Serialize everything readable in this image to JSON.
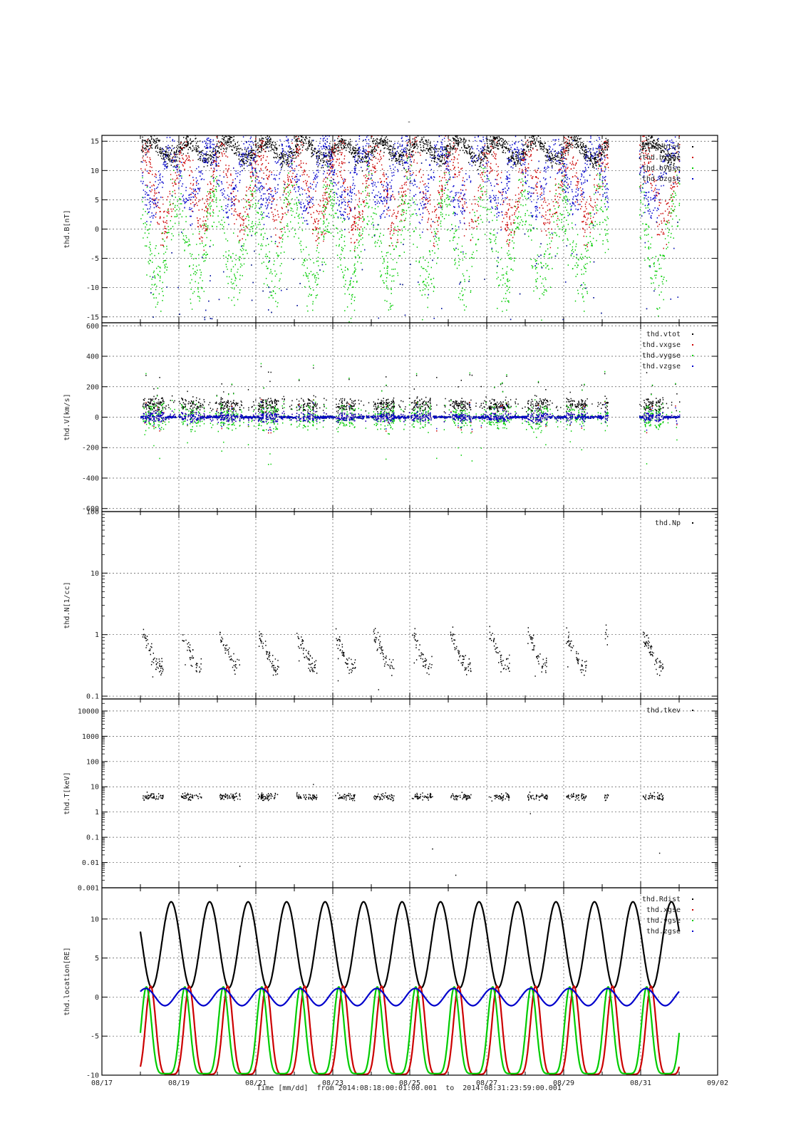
{
  "figure": {
    "title": "-",
    "xaxis_label": "Time [mm/dd]",
    "from_label": "from",
    "to_label": "to",
    "time_from": "2014:08:18:00:01:00.001",
    "time_to": "2014:08:31:23:59:00.001"
  },
  "chart_data": [
    {
      "type": "scatter",
      "ylabel": "thd.B[nT]",
      "ylim": [
        -16,
        16
      ],
      "yscale": "linear",
      "yticks": [
        15,
        10,
        5,
        0,
        -5,
        -10,
        -15
      ],
      "ytick_labels": [
        "15",
        "10",
        "5",
        "0",
        "-5",
        "-10",
        "-15"
      ],
      "xlim": [
        "2014-08-17",
        "2014-09-02"
      ],
      "xticks": [
        "2014-08-17",
        "2014-08-19",
        "2014-08-21",
        "2014-08-23",
        "2014-08-25",
        "2014-08-27",
        "2014-08-29",
        "2014-08-31",
        "2014-09-02"
      ],
      "xtick_labels": [
        "08/17",
        "08/19",
        "08/21",
        "08/23",
        "08/25",
        "08/27",
        "08/29",
        "08/31",
        "09/02"
      ],
      "grid": true,
      "legend_position": "top-right",
      "series": [
        {
          "name": "thd.btot",
          "color": "#000000",
          "pattern": "orbit-btot",
          "base": 13.5,
          "amp": 1.5,
          "noise": 6
        },
        {
          "name": "thd.bxgse",
          "color": "#cc0000",
          "pattern": "orbit-mag",
          "base": 7,
          "amp": 6,
          "noise": 10
        },
        {
          "name": "thd.bygse",
          "color": "#00cc00",
          "pattern": "orbit-mag",
          "base": -2,
          "amp": 7,
          "noise": 14
        },
        {
          "name": "thd.bzgse",
          "color": "#0000cc",
          "pattern": "orbit-mag",
          "base": 9,
          "amp": 5,
          "noise": 8
        }
      ]
    },
    {
      "type": "scatter",
      "ylabel": "thd.V[km/s]",
      "ylim": [
        -620,
        620
      ],
      "yscale": "linear",
      "yticks": [
        600,
        400,
        200,
        0,
        -200,
        -400,
        -600
      ],
      "ytick_labels": [
        "600",
        "400",
        "200",
        "0",
        "-200",
        "-400",
        "-600"
      ],
      "xlim": [
        "2014-08-17",
        "2014-09-02"
      ],
      "grid": true,
      "legend_position": "top-right",
      "series": [
        {
          "name": "thd.vtot",
          "color": "#000000",
          "pattern": "velocity-tot",
          "base": 60,
          "amp": 80,
          "noise": 60
        },
        {
          "name": "thd.vxgse",
          "color": "#cc0000",
          "pattern": "velocity",
          "base": 0,
          "amp": 30,
          "noise": 40
        },
        {
          "name": "thd.vygse",
          "color": "#00cc00",
          "pattern": "velocity",
          "base": 0,
          "amp": 90,
          "noise": 110
        },
        {
          "name": "thd.vzgse",
          "color": "#0000cc",
          "pattern": "velocity",
          "base": 0,
          "amp": 25,
          "noise": 40
        }
      ]
    },
    {
      "type": "scatter",
      "ylabel": "thd.N[1/cc]",
      "ylim": [
        0.09,
        100
      ],
      "yscale": "log",
      "yticks": [
        100,
        10,
        1,
        0.1
      ],
      "ytick_labels": [
        "100",
        "10",
        "1",
        "0.1"
      ],
      "xlim": [
        "2014-08-17",
        "2014-09-02"
      ],
      "grid": true,
      "legend_position": "top-right",
      "series": [
        {
          "name": "thd.Np",
          "color": "#000000",
          "pattern": "density",
          "base": 0.55,
          "amp": 0.45,
          "noise": 0.3
        }
      ]
    },
    {
      "type": "scatter",
      "ylabel": "thd.T[keV]",
      "ylim": [
        0.001,
        30000
      ],
      "yscale": "log",
      "yticks": [
        10000,
        1000,
        100,
        10,
        1,
        0.1,
        0.01,
        0.001
      ],
      "ytick_labels": [
        "10000",
        "1000",
        "100",
        "10",
        "1",
        "0.1",
        "0.01",
        "0.001"
      ],
      "xlim": [
        "2014-08-17",
        "2014-09-02"
      ],
      "grid": true,
      "legend_position": "top-right",
      "series": [
        {
          "name": "thd.tkev",
          "color": "#000000",
          "pattern": "temperature",
          "base": 4,
          "amp": 1.5,
          "noise": 0.4
        }
      ]
    },
    {
      "type": "line",
      "ylabel": "thd.location[RE]",
      "ylim": [
        -10,
        14
      ],
      "yscale": "linear",
      "yticks": [
        10,
        5,
        0,
        -5,
        -10
      ],
      "ytick_labels": [
        "10",
        "5",
        "0",
        "-5",
        "-10"
      ],
      "xlim": [
        "2014-08-17",
        "2014-09-02"
      ],
      "grid": true,
      "legend_position": "top-right",
      "orbit_period_days": 1.0,
      "series": [
        {
          "name": "thd.Rdist",
          "color": "#000000",
          "pattern": "rdist",
          "rmin": 1.2,
          "rmax": 12.2
        },
        {
          "name": "thd.xgse",
          "color": "#cc0000",
          "pattern": "xgse",
          "min": -9.9,
          "max": 1.4
        },
        {
          "name": "thd.ygse",
          "color": "#00cc00",
          "pattern": "ygse",
          "min": -9.8,
          "max": 1.3
        },
        {
          "name": "thd.zgse",
          "color": "#0000cc",
          "pattern": "zgse",
          "min": -1.1,
          "max": 1.1
        }
      ]
    }
  ]
}
